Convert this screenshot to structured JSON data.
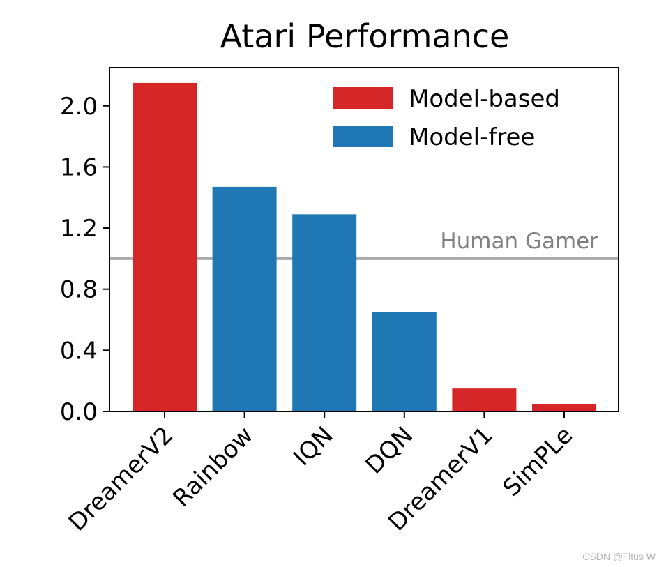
{
  "chart_data": {
    "type": "bar",
    "title": "Atari Performance",
    "xlabel": "",
    "ylabel": "",
    "categories": [
      "DreamerV2",
      "Rainbow",
      "IQN",
      "DQN",
      "DreamerV1",
      "SimPLe"
    ],
    "values": [
      2.15,
      1.47,
      1.29,
      0.65,
      0.15,
      0.05
    ],
    "groups": [
      "Model-based",
      "Model-free",
      "Model-free",
      "Model-free",
      "Model-based",
      "Model-based"
    ],
    "ylim": [
      0,
      2.25
    ],
    "yticks": [
      0.0,
      0.4,
      0.8,
      1.2,
      1.6,
      2.0
    ],
    "ytick_labels": [
      "0.0",
      "0.4",
      "0.8",
      "1.2",
      "1.6",
      "2.0"
    ],
    "grid": false,
    "legend": {
      "placement": "top-right",
      "entries": [
        {
          "label": "Model-based",
          "color": "#d62728"
        },
        {
          "label": "Model-free",
          "color": "#1f77b4"
        }
      ]
    },
    "reference_line": {
      "y": 1.0,
      "label": "Human Gamer",
      "color": "#aaaaaa"
    }
  },
  "watermark": "CSDN @Titus W"
}
